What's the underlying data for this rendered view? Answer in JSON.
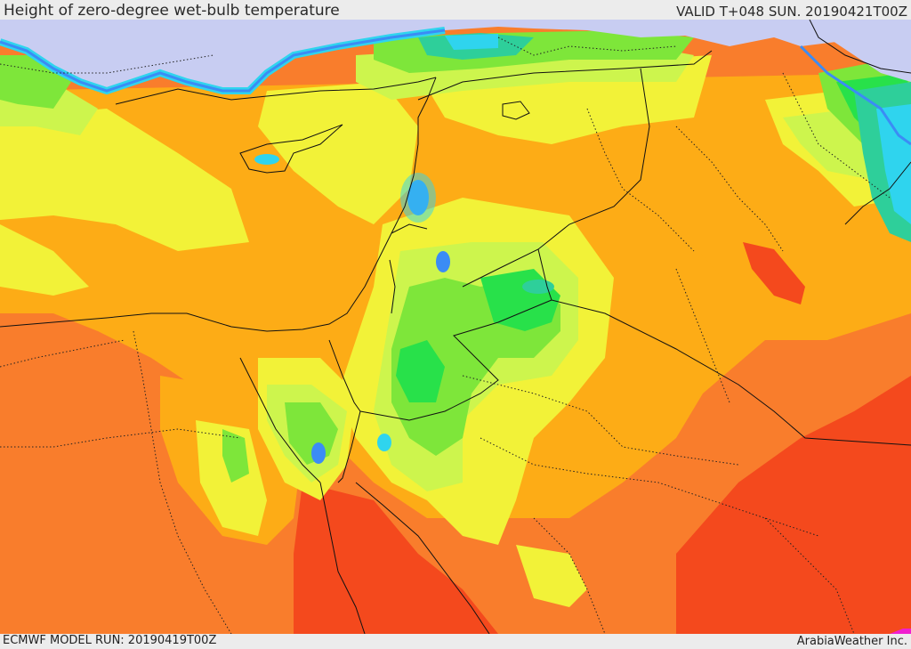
{
  "header": {
    "title": "Height of zero-degree wet-bulb temperature",
    "valid": "VALID T+048 SUN. 20190421T00Z"
  },
  "footer": {
    "model_run": "ECMWF MODEL RUN: 20190419T00Z",
    "credit": "ArabiaWeather Inc."
  },
  "palette": {
    "darkest_red": "#f4491d",
    "red": "#f97d2c",
    "orange": "#fdac16",
    "yellow": "#f2f238",
    "light_green": "#cdf54d",
    "green": "#7ee63a",
    "bright_green": "#28e14a",
    "teal": "#2ecf9a",
    "cyan": "#2fd4ee",
    "blue": "#3b8cf5",
    "lavender": "#c8cdf2",
    "magenta": "#f01fd0"
  }
}
